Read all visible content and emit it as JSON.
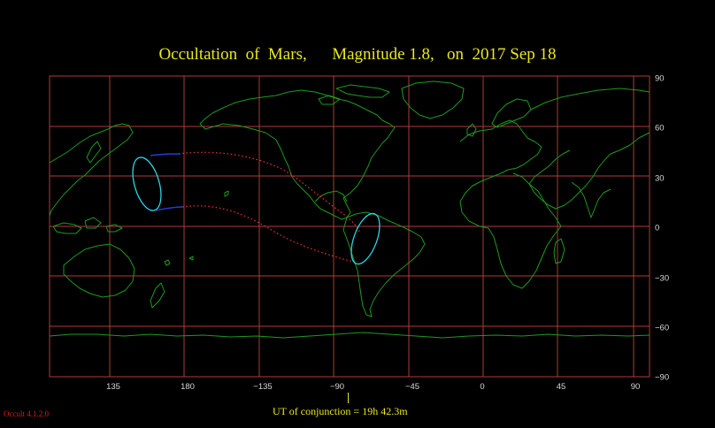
{
  "title": "Occultation  of  Mars,      Magnitude 1.8,   on  2017 Sep 18",
  "map": {
    "longitude_labels": [
      "135",
      "180",
      "−135",
      "−90",
      "−45",
      "0",
      "45",
      "90"
    ],
    "latitude_labels": [
      "90",
      "60",
      "30",
      "0",
      "−30",
      "−60",
      "−90"
    ],
    "grid_color": "#b03a3a",
    "coast_color": "#1e9a1e",
    "limit_color": "#e03030",
    "visibility_curve_color": "#2ad6e6"
  },
  "conjunction_label": "UT of conjunction = 19h 42.3m",
  "version_label": "Occult 4.1.2.0"
}
